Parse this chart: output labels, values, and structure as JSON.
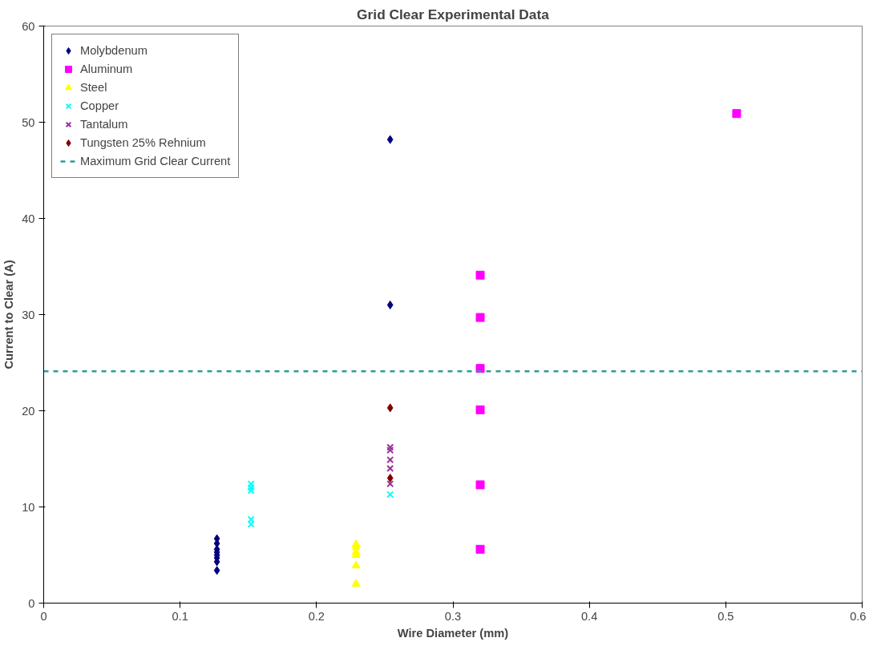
{
  "chart_data": {
    "type": "scatter",
    "title": "Grid Clear Experimental Data",
    "xlabel": "Wire Diameter (mm)",
    "ylabel": "Current to Clear (A)",
    "xlim": [
      0,
      0.6
    ],
    "xticks": [
      0,
      0.1,
      0.2,
      0.3,
      0.4,
      0.5,
      0.6
    ],
    "ylim": [
      0,
      60
    ],
    "yticks": [
      0,
      10,
      20,
      30,
      40,
      50,
      60
    ],
    "grid": false,
    "legend": "top left",
    "series": [
      {
        "name": "Molybdenum",
        "color": "#000080",
        "marker": "diamond",
        "x": [
          0.127,
          0.127,
          0.127,
          0.127,
          0.127,
          0.127,
          0.127,
          0.127,
          0.254,
          0.254
        ],
        "values": [
          3.4,
          4.3,
          4.7,
          5.0,
          5.3,
          5.6,
          6.2,
          6.7,
          31.0,
          48.2
        ]
      },
      {
        "name": "Aluminum",
        "color": "#ff00ff",
        "marker": "square",
        "x": [
          0.32,
          0.32,
          0.32,
          0.32,
          0.32,
          0.32,
          0.508
        ],
        "values": [
          5.6,
          12.3,
          20.1,
          24.4,
          29.7,
          34.1,
          50.9
        ]
      },
      {
        "name": "Steel",
        "color": "#ffff00",
        "marker": "triangle",
        "x": [
          0.229,
          0.229,
          0.229,
          0.229,
          0.229,
          0.229
        ],
        "values": [
          2.0,
          3.9,
          5.0,
          5.3,
          5.8,
          6.1
        ]
      },
      {
        "name": "Copper",
        "color": "#00ffff",
        "marker": "cross",
        "x": [
          0.152,
          0.152,
          0.152,
          0.152,
          0.152,
          0.254
        ],
        "values": [
          8.2,
          8.7,
          11.7,
          12.0,
          12.4,
          11.3
        ]
      },
      {
        "name": "Tantalum",
        "color": "#993399",
        "marker": "cross",
        "x": [
          0.254,
          0.254,
          0.254,
          0.254,
          0.254
        ],
        "values": [
          12.4,
          14.0,
          14.9,
          15.9,
          16.2
        ]
      },
      {
        "name": "Tungsten 25% Rehnium",
        "color": "#800000",
        "marker": "diamond",
        "x": [
          0.254,
          0.254
        ],
        "values": [
          13.0,
          20.3
        ]
      }
    ],
    "ref_lines": [
      {
        "axis": "y",
        "value": 24.1,
        "label": "Maximum Grid Clear Current",
        "color": "#2e9b9b",
        "line_style": "dashed"
      }
    ]
  }
}
